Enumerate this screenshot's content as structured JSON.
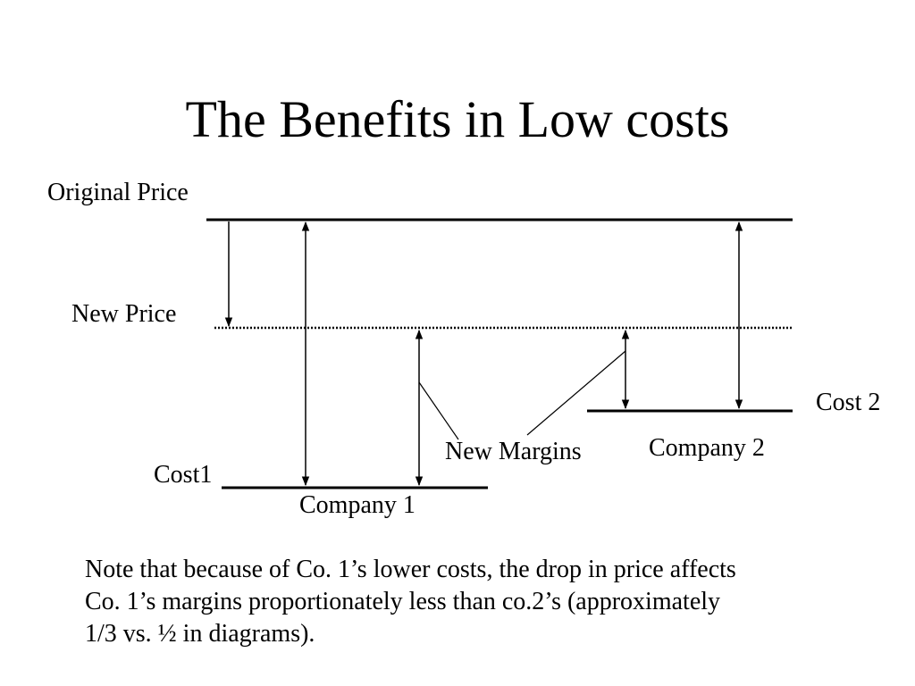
{
  "slide": {
    "title": "The Benefits in Low costs"
  },
  "diagram": {
    "labels": {
      "original_price": "Original Price",
      "new_price": "New Price",
      "cost1": "Cost1",
      "cost2": "Cost 2",
      "company1": "Company 1",
      "company2": "Company 2",
      "new_margins": "New Margins"
    }
  },
  "note": {
    "lines": [
      "Note that because of Co. 1’s lower costs, the drop in price affects",
      "Co. 1’s margins proportionately less than co.2’s  (approximately",
      "1/3 vs. ½  in diagrams)."
    ]
  }
}
